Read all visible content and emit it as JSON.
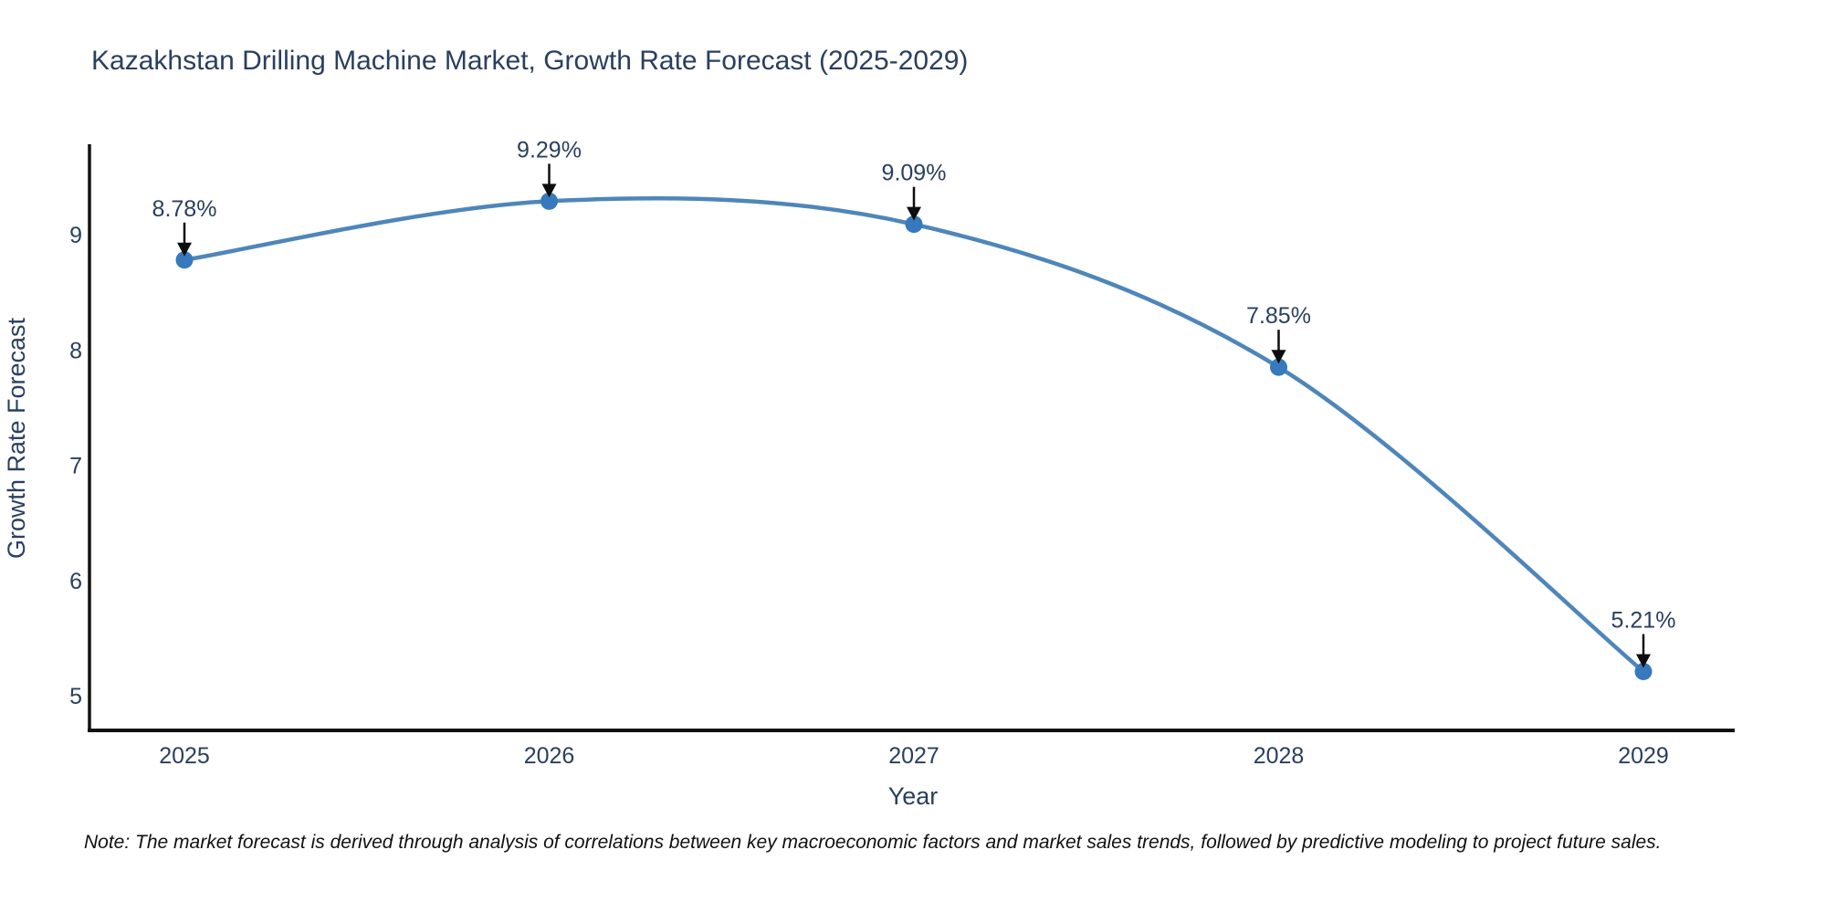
{
  "chart_data": {
    "type": "line",
    "title": "Kazakhstan Drilling Machine Market, Growth Rate Forecast (2025-2029)",
    "xlabel": "Year",
    "ylabel": "Growth Rate Forecast",
    "x": [
      2025,
      2026,
      2027,
      2028,
      2029
    ],
    "series": [
      {
        "name": "Growth Rate Forecast",
        "values": [
          8.78,
          9.29,
          9.09,
          7.85,
          5.21
        ]
      }
    ],
    "point_labels": [
      "8.78%",
      "9.29%",
      "9.09%",
      "7.85%",
      "5.21%"
    ],
    "xticks": [
      "2025",
      "2026",
      "2027",
      "2028",
      "2029"
    ],
    "yticks": [
      5,
      6,
      7,
      8,
      9
    ],
    "ylim": [
      4.7,
      9.83
    ],
    "xlim": [
      2024.74,
      2029.24
    ],
    "grid": false,
    "legend": "none",
    "line_shape": "spline",
    "marker": "circle",
    "annotation_style": "arrow-down-to-point",
    "colors": {
      "line": "#4e86ba",
      "marker": "#3679bd",
      "axis": "#111111",
      "text": "#2a3f5f",
      "annotation_arrow": "#0d0d0d"
    }
  },
  "footnote": "Note: The market forecast is derived through analysis of correlations between key macroeconomic factors and market sales trends, followed by predictive modeling to project future sales."
}
